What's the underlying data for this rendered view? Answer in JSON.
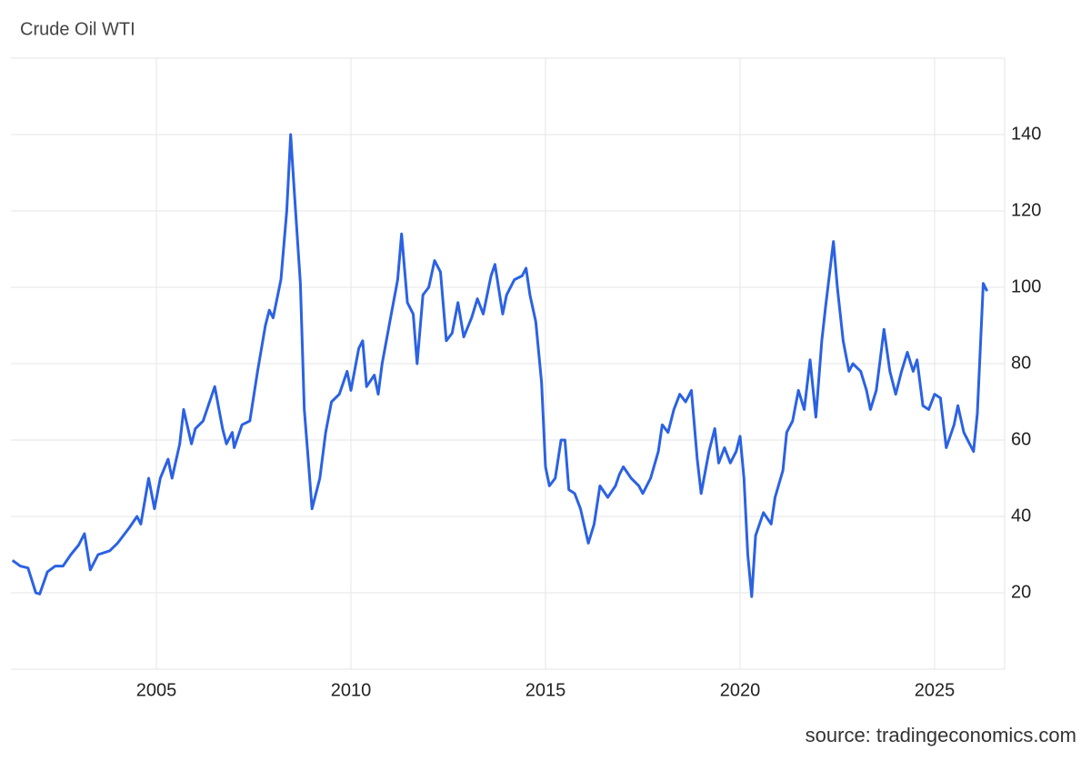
{
  "chart_data": {
    "type": "line",
    "title": "Crude Oil WTI",
    "source": "source: tradingeconomics.com",
    "color": "#2b62e3",
    "grid": true,
    "xlim": [
      2001.26,
      2026.8
    ],
    "ylim": [
      0,
      160
    ],
    "xticks": [
      2005,
      2010,
      2015,
      2020,
      2025
    ],
    "yticks": [
      20,
      40,
      60,
      80,
      100,
      120,
      140
    ],
    "x": [
      2001.3,
      2001.5,
      2001.7,
      2001.9,
      2002.0,
      2002.2,
      2002.4,
      2002.6,
      2002.8,
      2003.0,
      2003.15,
      2003.3,
      2003.5,
      2003.8,
      2004.0,
      2004.3,
      2004.5,
      2004.6,
      2004.8,
      2004.95,
      2005.1,
      2005.3,
      2005.4,
      2005.6,
      2005.7,
      2005.9,
      2006.0,
      2006.2,
      2006.5,
      2006.7,
      2006.8,
      2006.95,
      2007.0,
      2007.2,
      2007.4,
      2007.6,
      2007.8,
      2007.9,
      2008.0,
      2008.2,
      2008.35,
      2008.45,
      2008.55,
      2008.7,
      2008.8,
      2008.9,
      2009.0,
      2009.2,
      2009.35,
      2009.5,
      2009.7,
      2009.9,
      2010.0,
      2010.2,
      2010.3,
      2010.4,
      2010.6,
      2010.7,
      2010.8,
      2011.0,
      2011.2,
      2011.3,
      2011.45,
      2011.6,
      2011.7,
      2011.85,
      2012.0,
      2012.15,
      2012.3,
      2012.45,
      2012.6,
      2012.75,
      2012.9,
      2013.1,
      2013.25,
      2013.4,
      2013.6,
      2013.7,
      2013.9,
      2014.0,
      2014.2,
      2014.4,
      2014.5,
      2014.6,
      2014.75,
      2014.9,
      2015.0,
      2015.1,
      2015.25,
      2015.4,
      2015.5,
      2015.6,
      2015.75,
      2015.9,
      2016.1,
      2016.25,
      2016.4,
      2016.6,
      2016.8,
      2016.9,
      2017.0,
      2017.2,
      2017.4,
      2017.5,
      2017.7,
      2017.9,
      2018.0,
      2018.15,
      2018.3,
      2018.45,
      2018.6,
      2018.75,
      2018.9,
      2019.0,
      2019.2,
      2019.35,
      2019.45,
      2019.6,
      2019.75,
      2019.9,
      2020.0,
      2020.1,
      2020.2,
      2020.3,
      2020.4,
      2020.6,
      2020.8,
      2020.9,
      2021.1,
      2021.2,
      2021.35,
      2021.5,
      2021.65,
      2021.8,
      2021.95,
      2022.1,
      2022.2,
      2022.4,
      2022.5,
      2022.65,
      2022.8,
      2022.9,
      2023.1,
      2023.25,
      2023.35,
      2023.5,
      2023.6,
      2023.7,
      2023.85,
      2024.0,
      2024.15,
      2024.3,
      2024.45,
      2024.55,
      2024.7,
      2024.85,
      2025.0,
      2025.15,
      2025.3,
      2025.5,
      2025.6,
      2025.75,
      2025.9,
      2026.0,
      2026.1,
      2026.25,
      2026.35
    ],
    "values": [
      28.5,
      27,
      26.5,
      20,
      19.7,
      25.5,
      27,
      27,
      30,
      32.5,
      35.5,
      26,
      30,
      31,
      33,
      37,
      40,
      38,
      50,
      42,
      50,
      55,
      50,
      59,
      68,
      59,
      63,
      65,
      74,
      63,
      59,
      62,
      58,
      64,
      65,
      78,
      90,
      94,
      92,
      102,
      120,
      140,
      124,
      101,
      68,
      55,
      42,
      50,
      62,
      70,
      72,
      78,
      73,
      84,
      86,
      74,
      77,
      72,
      80,
      91,
      102,
      114,
      96,
      93,
      80,
      98,
      100,
      107,
      104,
      86,
      88,
      96,
      87,
      92,
      97,
      93,
      103,
      106,
      93,
      98,
      102,
      103,
      105,
      98,
      91,
      75,
      53,
      48,
      50,
      60,
      60,
      47,
      46,
      42,
      33,
      38,
      48,
      45,
      48,
      51,
      53,
      50,
      48,
      46,
      50,
      57,
      64,
      62,
      68,
      72,
      70,
      73,
      55,
      46,
      57,
      63,
      54,
      58,
      54,
      57,
      61,
      50,
      30,
      19,
      35,
      41,
      38,
      45,
      52,
      62,
      65,
      73,
      68,
      81,
      66,
      86,
      95,
      112,
      100,
      86,
      78,
      80,
      78,
      73,
      68,
      73,
      81,
      89,
      78,
      72,
      78,
      83,
      78,
      81,
      69,
      68,
      72,
      71,
      58,
      64,
      69,
      62,
      59,
      57,
      67,
      101,
      99
    ]
  }
}
